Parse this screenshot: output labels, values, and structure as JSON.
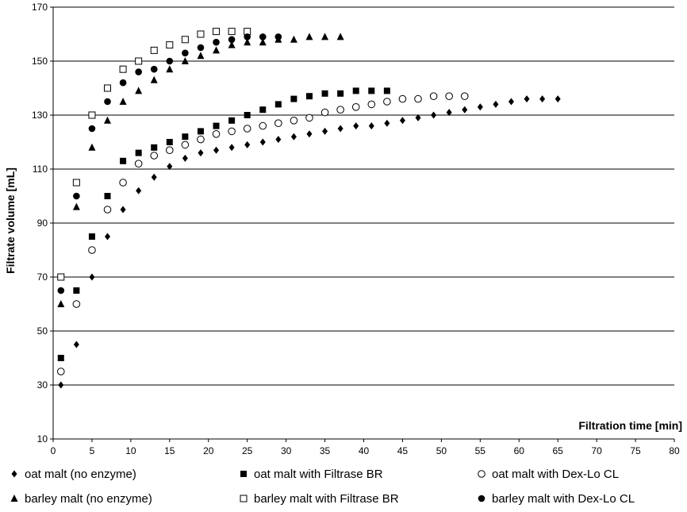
{
  "chart_data": {
    "type": "scatter",
    "xlabel": "Filtration time [min]",
    "ylabel": "Filtrate volume [mL]",
    "xlim": [
      0,
      80
    ],
    "ylim": [
      10,
      170
    ],
    "xticks": [
      0,
      5,
      10,
      15,
      20,
      25,
      30,
      35,
      40,
      45,
      50,
      55,
      60,
      65,
      70,
      75,
      80
    ],
    "yticks": [
      10,
      30,
      50,
      70,
      90,
      110,
      130,
      150,
      170
    ],
    "grid": "horizontal",
    "legend_position": "bottom",
    "series": [
      {
        "name": "oat malt (no enzyme)",
        "marker": "diamond",
        "color": "#000000",
        "points": [
          [
            1,
            30
          ],
          [
            3,
            45
          ],
          [
            5,
            70
          ],
          [
            7,
            85
          ],
          [
            9,
            95
          ],
          [
            11,
            102
          ],
          [
            13,
            107
          ],
          [
            15,
            111
          ],
          [
            17,
            114
          ],
          [
            19,
            116
          ],
          [
            21,
            117
          ],
          [
            23,
            118
          ],
          [
            25,
            119
          ],
          [
            27,
            120
          ],
          [
            29,
            121
          ],
          [
            31,
            122
          ],
          [
            33,
            123
          ],
          [
            35,
            124
          ],
          [
            37,
            125
          ],
          [
            39,
            126
          ],
          [
            41,
            126
          ],
          [
            43,
            127
          ],
          [
            45,
            128
          ],
          [
            47,
            129
          ],
          [
            49,
            130
          ],
          [
            51,
            131
          ],
          [
            53,
            132
          ],
          [
            55,
            133
          ],
          [
            57,
            134
          ],
          [
            59,
            135
          ],
          [
            61,
            136
          ],
          [
            63,
            136
          ],
          [
            65,
            136
          ]
        ]
      },
      {
        "name": "oat malt with Filtrase BR",
        "marker": "square-filled",
        "color": "#000000",
        "points": [
          [
            1,
            40
          ],
          [
            3,
            65
          ],
          [
            5,
            85
          ],
          [
            7,
            100
          ],
          [
            9,
            113
          ],
          [
            11,
            116
          ],
          [
            13,
            118
          ],
          [
            15,
            120
          ],
          [
            17,
            122
          ],
          [
            19,
            124
          ],
          [
            21,
            126
          ],
          [
            23,
            128
          ],
          [
            25,
            130
          ],
          [
            27,
            132
          ],
          [
            29,
            134
          ],
          [
            31,
            136
          ],
          [
            33,
            137
          ],
          [
            35,
            138
          ],
          [
            37,
            138
          ],
          [
            39,
            139
          ],
          [
            41,
            139
          ],
          [
            43,
            139
          ]
        ]
      },
      {
        "name": "oat malt with Dex-Lo CL",
        "marker": "circle-open",
        "color": "#000000",
        "points": [
          [
            1,
            35
          ],
          [
            3,
            60
          ],
          [
            5,
            80
          ],
          [
            7,
            95
          ],
          [
            9,
            105
          ],
          [
            11,
            112
          ],
          [
            13,
            115
          ],
          [
            15,
            117
          ],
          [
            17,
            119
          ],
          [
            19,
            121
          ],
          [
            21,
            123
          ],
          [
            23,
            124
          ],
          [
            25,
            125
          ],
          [
            27,
            126
          ],
          [
            29,
            127
          ],
          [
            31,
            128
          ],
          [
            33,
            129
          ],
          [
            35,
            131
          ],
          [
            37,
            132
          ],
          [
            39,
            133
          ],
          [
            41,
            134
          ],
          [
            43,
            135
          ],
          [
            45,
            136
          ],
          [
            47,
            136
          ],
          [
            49,
            137
          ],
          [
            51,
            137
          ],
          [
            53,
            137
          ]
        ]
      },
      {
        "name": "barley malt (no enzyme)",
        "marker": "triangle",
        "color": "#000000",
        "points": [
          [
            1,
            60
          ],
          [
            3,
            96
          ],
          [
            5,
            118
          ],
          [
            7,
            128
          ],
          [
            9,
            135
          ],
          [
            11,
            139
          ],
          [
            13,
            143
          ],
          [
            15,
            147
          ],
          [
            17,
            150
          ],
          [
            19,
            152
          ],
          [
            21,
            154
          ],
          [
            23,
            156
          ],
          [
            25,
            157
          ],
          [
            27,
            157
          ],
          [
            29,
            158
          ],
          [
            31,
            158
          ],
          [
            33,
            159
          ],
          [
            35,
            159
          ],
          [
            37,
            159
          ]
        ]
      },
      {
        "name": "barley malt with Filtrase BR",
        "marker": "square-open",
        "color": "#000000",
        "points": [
          [
            1,
            70
          ],
          [
            3,
            105
          ],
          [
            5,
            130
          ],
          [
            7,
            140
          ],
          [
            9,
            147
          ],
          [
            11,
            150
          ],
          [
            13,
            154
          ],
          [
            15,
            156
          ],
          [
            17,
            158
          ],
          [
            19,
            160
          ],
          [
            21,
            161
          ],
          [
            23,
            161
          ],
          [
            25,
            161
          ]
        ]
      },
      {
        "name": "barley malt with Dex-Lo CL",
        "marker": "circle-filled",
        "color": "#000000",
        "points": [
          [
            1,
            65
          ],
          [
            3,
            100
          ],
          [
            5,
            125
          ],
          [
            7,
            135
          ],
          [
            9,
            142
          ],
          [
            11,
            146
          ],
          [
            13,
            147
          ],
          [
            15,
            150
          ],
          [
            17,
            153
          ],
          [
            19,
            155
          ],
          [
            21,
            157
          ],
          [
            23,
            158
          ],
          [
            25,
            159
          ],
          [
            27,
            159
          ],
          [
            29,
            159
          ]
        ]
      }
    ]
  }
}
